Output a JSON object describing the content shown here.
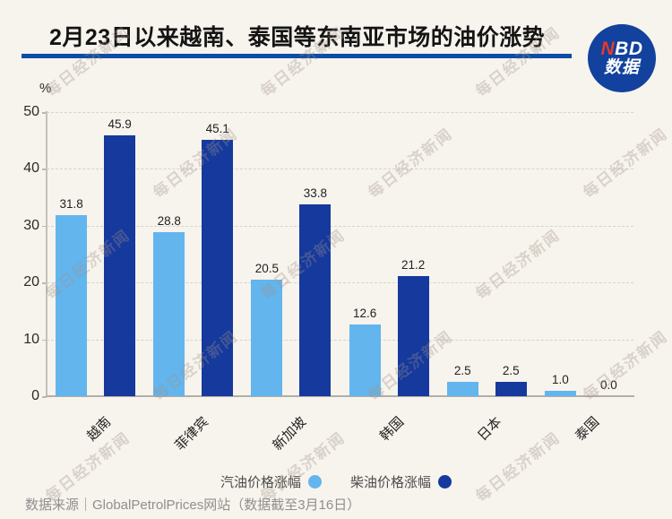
{
  "header": {
    "title": "2月23日以来越南、泰国等东南亚市场的油价涨势",
    "logo": {
      "nbd_red": "N",
      "nbd_white": "BD",
      "subtitle": "数据"
    }
  },
  "chart_data": {
    "type": "bar",
    "title": "2月23日以来越南、泰国等东南亚市场的油价涨势",
    "unit_label": "%",
    "categories": [
      "越南",
      "菲律宾",
      "新加坡",
      "韩国",
      "日本",
      "泰国"
    ],
    "series": [
      {
        "name": "汽油价格涨幅",
        "color": "#63b5ee",
        "values": [
          31.8,
          28.8,
          20.5,
          12.6,
          2.5,
          1.0
        ]
      },
      {
        "name": "柴油价格涨幅",
        "color": "#16399d",
        "values": [
          45.9,
          45.1,
          33.8,
          21.2,
          2.5,
          0.0
        ]
      }
    ],
    "ylim": [
      0,
      50
    ],
    "y_ticks": [
      0,
      10,
      20,
      30,
      40,
      50
    ],
    "grid": "horizontal dashed",
    "legend_position": "bottom",
    "value_labels": "above bars, one decimal"
  },
  "footer": {
    "source": "数据来源｜GlobalPetrolPrices网站（数据截至3月16日）"
  },
  "watermark": {
    "text": "每日经济新闻"
  },
  "colors": {
    "background": "#f7f3ed",
    "accent_blue": "#0c4da6",
    "light_bar": "#63b5ee",
    "dark_bar": "#16399d",
    "logo_circle": "#12419e",
    "logo_red": "#e8392a",
    "gridline": "#d8d3cb"
  }
}
